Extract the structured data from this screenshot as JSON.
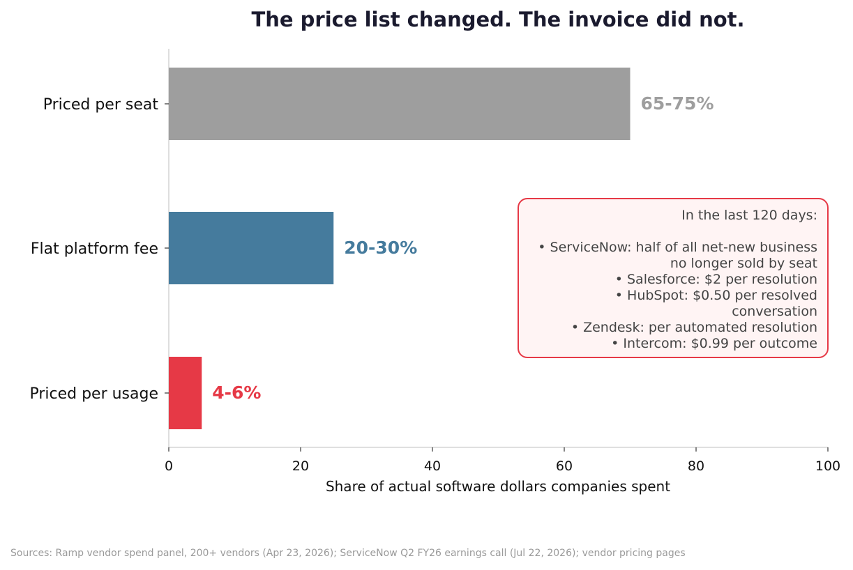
{
  "chart_data": {
    "type": "bar",
    "orientation": "horizontal",
    "title": "The price list changed. The invoice did not.",
    "xlabel": "Share of actual software dollars companies spent",
    "ylabel": "",
    "xlim": [
      0,
      100
    ],
    "xticks": [
      0,
      20,
      40,
      60,
      80,
      100
    ],
    "xtick_labels": [
      "0",
      "20",
      "40",
      "60",
      "80",
      "100"
    ],
    "grid": false,
    "categories": [
      "Priced per seat",
      "Flat platform fee",
      "Priced per usage"
    ],
    "values": [
      70,
      25,
      5
    ],
    "data_labels": [
      "65-75%",
      "20-30%",
      "4-6%"
    ],
    "colors": [
      "#9e9e9e",
      "#457b9d",
      "#e63946"
    ]
  },
  "annotation": {
    "title": "In the last 120 days:",
    "items": [
      "ServiceNow: half of all net-new business no longer sold by seat",
      "Salesforce: $2 per resolution",
      "HubSpot: $0.50 per resolved conversation",
      "Zendesk: per automated resolution",
      "Intercom: $0.99 per outcome"
    ],
    "border_color": "#e63946",
    "background_color": "#fff4f4"
  },
  "source": "Sources: Ramp vendor spend panel, 200+ vendors (Apr 23, 2026); ServiceNow Q2 FY26 earnings call (Jul 22, 2026); vendor pricing pages"
}
